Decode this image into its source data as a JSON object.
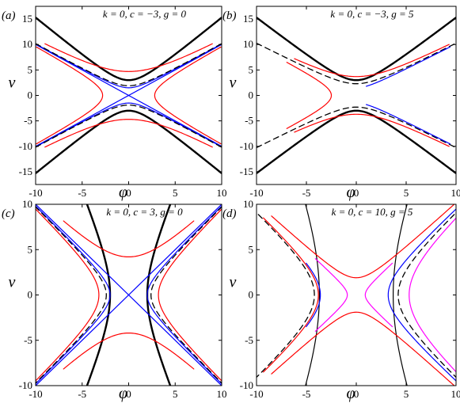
{
  "chart_data": [
    {
      "type": "line",
      "panel": "(a)",
      "title": "k = 0, c = −3, g = 0",
      "xlabel": "φ",
      "ylabel": "v",
      "xlim": [
        -10,
        10
      ],
      "ylim": [
        -17.5,
        17.5
      ],
      "xticks": [
        "-10",
        "-5",
        "0",
        "5",
        "10"
      ],
      "xtick_values": [
        -10,
        -5,
        0,
        5,
        10
      ],
      "yticks": [
        "15",
        "10",
        "5",
        "0",
        "-5",
        "-10",
        "-15"
      ],
      "ytick_values": [
        15,
        10,
        5,
        0,
        -5,
        -10,
        -15
      ],
      "show_xticklabels": false,
      "show_yticklabels": true,
      "series": [
        {
          "style": "black-thick",
          "shape": "vhyper",
          "a": 3.0,
          "s": 1.5,
          "x_range": [
            -10,
            10
          ]
        },
        {
          "style": "red",
          "shape": "vhyper",
          "a": 4.7,
          "s": 1.0,
          "x_range": [
            -9.0,
            9.0
          ]
        },
        {
          "style": "red",
          "shape": "hhyper",
          "a": 2.8,
          "s": 1.0,
          "y_range": [
            -9.5,
            9.5
          ]
        },
        {
          "style": "blue",
          "shape": "lines",
          "s": 1.0
        },
        {
          "style": "blue",
          "shape": "vhyper",
          "a": 1.5,
          "s": 1.0,
          "x_range": [
            -10,
            10
          ]
        },
        {
          "style": "black-dashed",
          "shape": "vhyper",
          "a": 1.9,
          "s": 1.0,
          "x_range": [
            -10,
            10
          ]
        }
      ]
    },
    {
      "type": "line",
      "panel": "(b)",
      "title": "k = 0, c = −3, g = 5",
      "xlabel": "φ",
      "ylabel": "v",
      "xlim": [
        -10,
        10
      ],
      "ylim": [
        -17.5,
        17.5
      ],
      "xticks": [
        "-10",
        "-5",
        "0",
        "5",
        "10"
      ],
      "xtick_values": [
        -10,
        -5,
        0,
        5,
        10
      ],
      "yticks": [
        "15",
        "10",
        "5",
        "0",
        "-5",
        "-10",
        "-15"
      ],
      "ytick_values": [
        15,
        10,
        5,
        0,
        -5,
        -10,
        -15
      ],
      "show_xticklabels": false,
      "show_yticklabels": true,
      "series": [
        {
          "style": "black-thick",
          "shape": "vhyper",
          "a": 3.0,
          "s": 1.5,
          "x_range": [
            -10,
            10
          ]
        },
        {
          "style": "red",
          "shape": "vhyper",
          "a": 3.7,
          "s": 1.0,
          "x_range": [
            -6.2,
            9.3
          ]
        },
        {
          "style": "red",
          "shape": "hhyper",
          "a": 2.5,
          "s": 1.0,
          "y_range": [
            -6.5,
            6.5
          ],
          "side": "left"
        },
        {
          "style": "black-dashed",
          "shape": "vhyper",
          "a": 2.3,
          "s": 1.0,
          "x_range": [
            -10,
            10
          ]
        },
        {
          "style": "blue",
          "shape": "vhyper",
          "a": 1.5,
          "s": 1.0,
          "x_range": [
            1.0,
            9.4
          ]
        }
      ]
    },
    {
      "type": "line",
      "panel": "(c)",
      "title": "k = 0, c = 3, g = 0",
      "xlabel": "φ",
      "ylabel": "v",
      "xlim": [
        -10,
        10
      ],
      "ylim": [
        -10,
        10
      ],
      "xticks": [
        "-10",
        "-5",
        "0",
        "5",
        "10"
      ],
      "xtick_values": [
        -10,
        -5,
        0,
        5,
        10
      ],
      "yticks": [
        "10",
        "5",
        "0",
        "-5",
        "-10"
      ],
      "ytick_values": [
        10,
        5,
        0,
        -5,
        -10
      ],
      "show_xticklabels": true,
      "show_yticklabels": true,
      "series": [
        {
          "style": "black-thick",
          "shape": "hhyper",
          "a": 2.0,
          "s": 0.4,
          "y_range": [
            -10,
            10
          ]
        },
        {
          "style": "red",
          "shape": "hhyper",
          "a": 3.2,
          "s": 1.0,
          "y_range": [
            -9.5,
            9.5
          ]
        },
        {
          "style": "red",
          "shape": "vhyper",
          "a": 4.2,
          "s": 1.0,
          "x_range": [
            -7.0,
            7.0
          ]
        },
        {
          "style": "blue",
          "shape": "lines",
          "s": 1.0
        },
        {
          "style": "blue",
          "shape": "hhyper",
          "a": 2.0,
          "s": 1.0,
          "y_range": [
            -10,
            10
          ]
        },
        {
          "style": "black-dashed",
          "shape": "hhyper",
          "a": 2.4,
          "s": 1.0,
          "y_range": [
            -10,
            10
          ]
        }
      ]
    },
    {
      "type": "line",
      "panel": "(d)",
      "title": "k = 0, c = 10, g = 5",
      "xlabel": "φ",
      "ylabel": "v",
      "xlim": [
        -10,
        10
      ],
      "ylim": [
        -10,
        10
      ],
      "xticks": [
        "-10",
        "-5",
        "0",
        "5",
        "10"
      ],
      "xtick_values": [
        -10,
        -5,
        0,
        5,
        10
      ],
      "yticks": [
        "10",
        "5",
        "0",
        "-5",
        "-10"
      ],
      "ytick_values": [
        10,
        5,
        0,
        -5,
        -10
      ],
      "show_xticklabels": true,
      "show_yticklabels": true,
      "series": [
        {
          "style": "black-thin",
          "shape": "hhyper",
          "a": 3.7,
          "s": 0.35,
          "y_range": [
            -10,
            10
          ]
        },
        {
          "style": "red",
          "shape": "vhyper",
          "a": 1.9,
          "s": 1.0,
          "x_range": [
            -8.5,
            10
          ]
        },
        {
          "style": "red",
          "shape": "hhyper",
          "a": 3.8,
          "s": 1.0,
          "y_range": [
            -8.5,
            8.5
          ],
          "side": "left"
        },
        {
          "style": "magenta",
          "shape": "hhyper",
          "a": 0.9,
          "s": 1.0,
          "y_range": [
            -4.0,
            4.0
          ],
          "side": "left"
        },
        {
          "style": "magenta",
          "shape": "hhyper",
          "a": 0.9,
          "s": 1.0,
          "y_range": [
            -3.5,
            3.5
          ],
          "side": "right",
          "x_shift": 0
        },
        {
          "style": "magenta",
          "shape": "hhyper",
          "a": 5.3,
          "s": 1.0,
          "y_range": [
            -9.5,
            9.5
          ],
          "side": "right"
        },
        {
          "style": "black-dashed",
          "shape": "hhyper",
          "a": 4.2,
          "s": 1.0,
          "y_range": [
            -10,
            10
          ]
        },
        {
          "style": "blue",
          "shape": "hhyper",
          "a": 3.2,
          "s": 1.0,
          "y_range": [
            -10,
            10
          ],
          "side": "right"
        },
        {
          "style": "blue",
          "shape": "hhyper",
          "a": 3.6,
          "s": 1.0,
          "y_range": [
            -3.5,
            3.5
          ],
          "side": "left"
        }
      ]
    }
  ],
  "colors": {
    "black": "#000000",
    "red": "#ff0000",
    "blue": "#0000ff",
    "magenta": "#ff00ff"
  }
}
